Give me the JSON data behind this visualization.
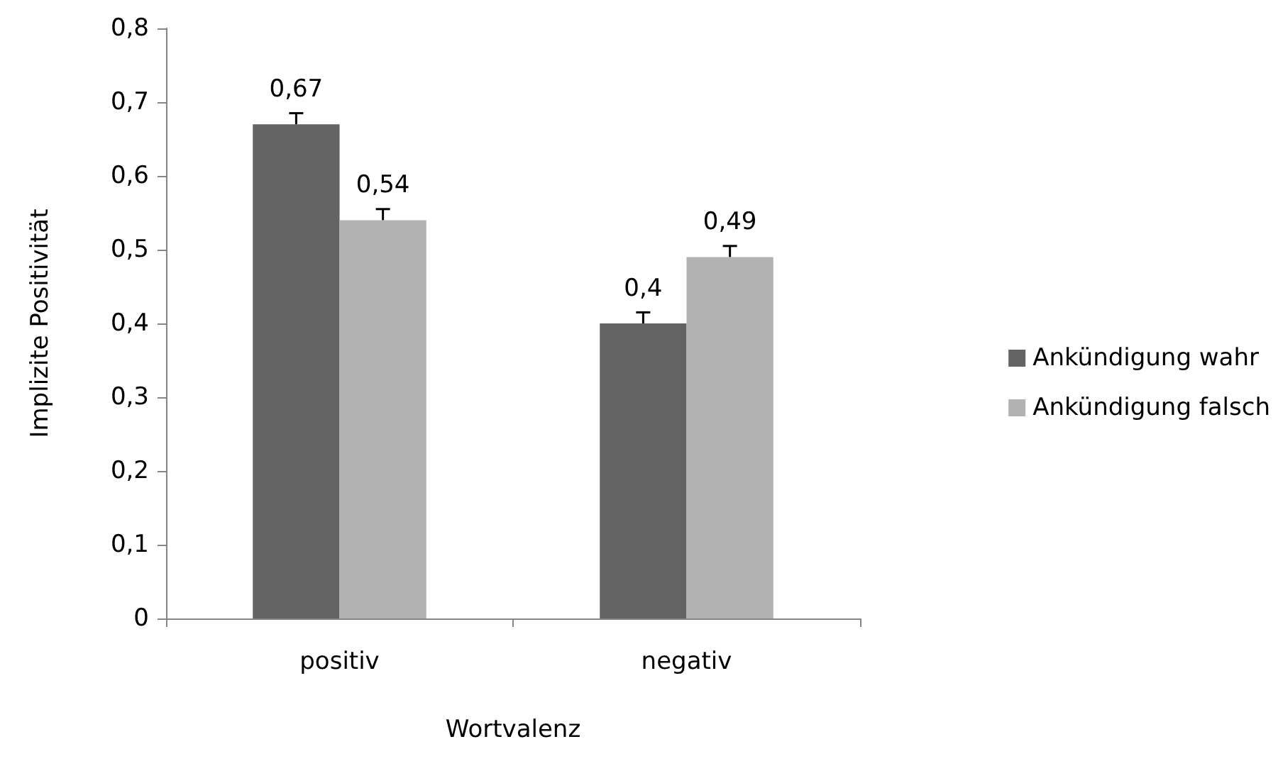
{
  "chart_data": {
    "type": "bar",
    "xlabel": "Wortvalenz",
    "ylabel": "Implizite Positivität",
    "categories": [
      "positiv",
      "negativ"
    ],
    "series": [
      {
        "name": "Ankündigung wahr",
        "color": "#636363",
        "values": [
          0.67,
          0.4
        ],
        "value_labels": [
          "0,67",
          "0,4"
        ],
        "errors": [
          [
            0.67,
            0.685
          ],
          [
            0.4,
            0.415
          ]
        ]
      },
      {
        "name": "Ankündigung falsch",
        "color": "#b2b2b2",
        "values": [
          0.54,
          0.49
        ],
        "value_labels": [
          "0,54",
          "0,49"
        ],
        "errors": [
          [
            0.54,
            0.555
          ],
          [
            0.49,
            0.505
          ]
        ]
      }
    ],
    "ylim": [
      0,
      0.8
    ],
    "yticks": [
      {
        "value": 0,
        "label": "0"
      },
      {
        "value": 0.1,
        "label": "0,1"
      },
      {
        "value": 0.2,
        "label": "0,2"
      },
      {
        "value": 0.3,
        "label": "0,3"
      },
      {
        "value": 0.4,
        "label": "0,4"
      },
      {
        "value": 0.5,
        "label": "0,5"
      },
      {
        "value": 0.6,
        "label": "0,6"
      },
      {
        "value": 0.7,
        "label": "0,7"
      },
      {
        "value": 0.8,
        "label": "0,8"
      }
    ],
    "grid": false,
    "legend": "right"
  }
}
